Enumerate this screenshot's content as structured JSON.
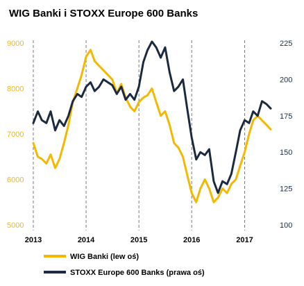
{
  "chart_data": {
    "type": "line",
    "title": "WIG Banki i STOXX Europe 600 Banks",
    "x_ticks": [
      "2013",
      "2014",
      "2015",
      "2016",
      "2017"
    ],
    "xlim": [
      "2013-01-01",
      "2017-06-30"
    ],
    "y_left": {
      "ticks": [
        "5000",
        "6000",
        "7000",
        "8000",
        "9000"
      ],
      "range": [
        5000,
        9000
      ],
      "color": "#f5b800"
    },
    "y_right": {
      "ticks": [
        "100",
        "125",
        "150",
        "175",
        "200",
        "225"
      ],
      "range": [
        100,
        225
      ],
      "color": "#1b2a3e"
    },
    "grid": {
      "vertical_dashed_at_years": true,
      "horizontal": false
    },
    "legend_position": "bottom-left",
    "series": [
      {
        "name": "WIG Banki (lew oś)",
        "axis": "left",
        "color": "#f5b800",
        "points": [
          [
            "2013-01-01",
            6800
          ],
          [
            "2013-02-01",
            6500
          ],
          [
            "2013-03-01",
            6450
          ],
          [
            "2013-04-01",
            6350
          ],
          [
            "2013-05-01",
            6550
          ],
          [
            "2013-06-01",
            6250
          ],
          [
            "2013-07-01",
            6450
          ],
          [
            "2013-08-01",
            6800
          ],
          [
            "2013-09-01",
            7200
          ],
          [
            "2013-10-01",
            7700
          ],
          [
            "2013-11-01",
            8000
          ],
          [
            "2013-12-01",
            8300
          ],
          [
            "2014-01-01",
            8700
          ],
          [
            "2014-02-01",
            8850
          ],
          [
            "2014-03-01",
            8600
          ],
          [
            "2014-04-01",
            8500
          ],
          [
            "2014-05-01",
            8400
          ],
          [
            "2014-06-01",
            8300
          ],
          [
            "2014-07-01",
            8200
          ],
          [
            "2014-08-01",
            7900
          ],
          [
            "2014-09-01",
            8100
          ],
          [
            "2014-10-01",
            7800
          ],
          [
            "2014-11-01",
            7600
          ],
          [
            "2014-12-01",
            7500
          ],
          [
            "2015-01-01",
            7700
          ],
          [
            "2015-02-01",
            7800
          ],
          [
            "2015-03-01",
            7850
          ],
          [
            "2015-04-01",
            8000
          ],
          [
            "2015-05-01",
            7700
          ],
          [
            "2015-06-01",
            7400
          ],
          [
            "2015-07-01",
            7500
          ],
          [
            "2015-08-01",
            7200
          ],
          [
            "2015-09-01",
            6800
          ],
          [
            "2015-10-01",
            6700
          ],
          [
            "2015-11-01",
            6500
          ],
          [
            "2015-12-01",
            6100
          ],
          [
            "2016-01-01",
            5700
          ],
          [
            "2016-02-01",
            5500
          ],
          [
            "2016-03-01",
            5800
          ],
          [
            "2016-04-01",
            6000
          ],
          [
            "2016-05-01",
            5800
          ],
          [
            "2016-06-01",
            5500
          ],
          [
            "2016-07-01",
            5600
          ],
          [
            "2016-08-01",
            5800
          ],
          [
            "2016-09-01",
            5700
          ],
          [
            "2016-10-01",
            5900
          ],
          [
            "2016-11-01",
            6000
          ],
          [
            "2016-12-01",
            6300
          ],
          [
            "2017-01-01",
            6600
          ],
          [
            "2017-02-01",
            7000
          ],
          [
            "2017-03-01",
            7300
          ],
          [
            "2017-04-01",
            7400
          ],
          [
            "2017-05-01",
            7300
          ],
          [
            "2017-06-01",
            7200
          ],
          [
            "2017-06-30",
            7100
          ]
        ]
      },
      {
        "name": "STOXX Europe 600 Banks (prawa oś)",
        "axis": "right",
        "color": "#1b2a3e",
        "points": [
          [
            "2013-01-01",
            170
          ],
          [
            "2013-02-01",
            178
          ],
          [
            "2013-03-01",
            172
          ],
          [
            "2013-04-01",
            170
          ],
          [
            "2013-05-01",
            178
          ],
          [
            "2013-06-01",
            165
          ],
          [
            "2013-07-01",
            172
          ],
          [
            "2013-08-01",
            168
          ],
          [
            "2013-09-01",
            175
          ],
          [
            "2013-10-01",
            185
          ],
          [
            "2013-11-01",
            190
          ],
          [
            "2013-12-01",
            188
          ],
          [
            "2014-01-01",
            195
          ],
          [
            "2014-02-01",
            198
          ],
          [
            "2014-03-01",
            192
          ],
          [
            "2014-04-01",
            195
          ],
          [
            "2014-05-01",
            200
          ],
          [
            "2014-06-01",
            198
          ],
          [
            "2014-07-01",
            196
          ],
          [
            "2014-08-01",
            190
          ],
          [
            "2014-09-01",
            195
          ],
          [
            "2014-10-01",
            186
          ],
          [
            "2014-11-01",
            190
          ],
          [
            "2014-12-01",
            186
          ],
          [
            "2015-01-01",
            195
          ],
          [
            "2015-02-01",
            212
          ],
          [
            "2015-03-01",
            220
          ],
          [
            "2015-04-01",
            226
          ],
          [
            "2015-05-01",
            222
          ],
          [
            "2015-06-01",
            215
          ],
          [
            "2015-07-01",
            222
          ],
          [
            "2015-08-01",
            205
          ],
          [
            "2015-09-01",
            192
          ],
          [
            "2015-10-01",
            195
          ],
          [
            "2015-11-01",
            200
          ],
          [
            "2015-12-01",
            180
          ],
          [
            "2016-01-01",
            160
          ],
          [
            "2016-02-01",
            145
          ],
          [
            "2016-03-01",
            150
          ],
          [
            "2016-04-01",
            148
          ],
          [
            "2016-05-01",
            152
          ],
          [
            "2016-06-01",
            130
          ],
          [
            "2016-07-01",
            122
          ],
          [
            "2016-08-01",
            130
          ],
          [
            "2016-09-01",
            128
          ],
          [
            "2016-10-01",
            135
          ],
          [
            "2016-11-01",
            150
          ],
          [
            "2016-12-01",
            165
          ],
          [
            "2017-01-01",
            172
          ],
          [
            "2017-02-01",
            170
          ],
          [
            "2017-03-01",
            178
          ],
          [
            "2017-04-01",
            175
          ],
          [
            "2017-05-01",
            185
          ],
          [
            "2017-06-01",
            183
          ],
          [
            "2017-06-30",
            180
          ]
        ]
      }
    ]
  }
}
